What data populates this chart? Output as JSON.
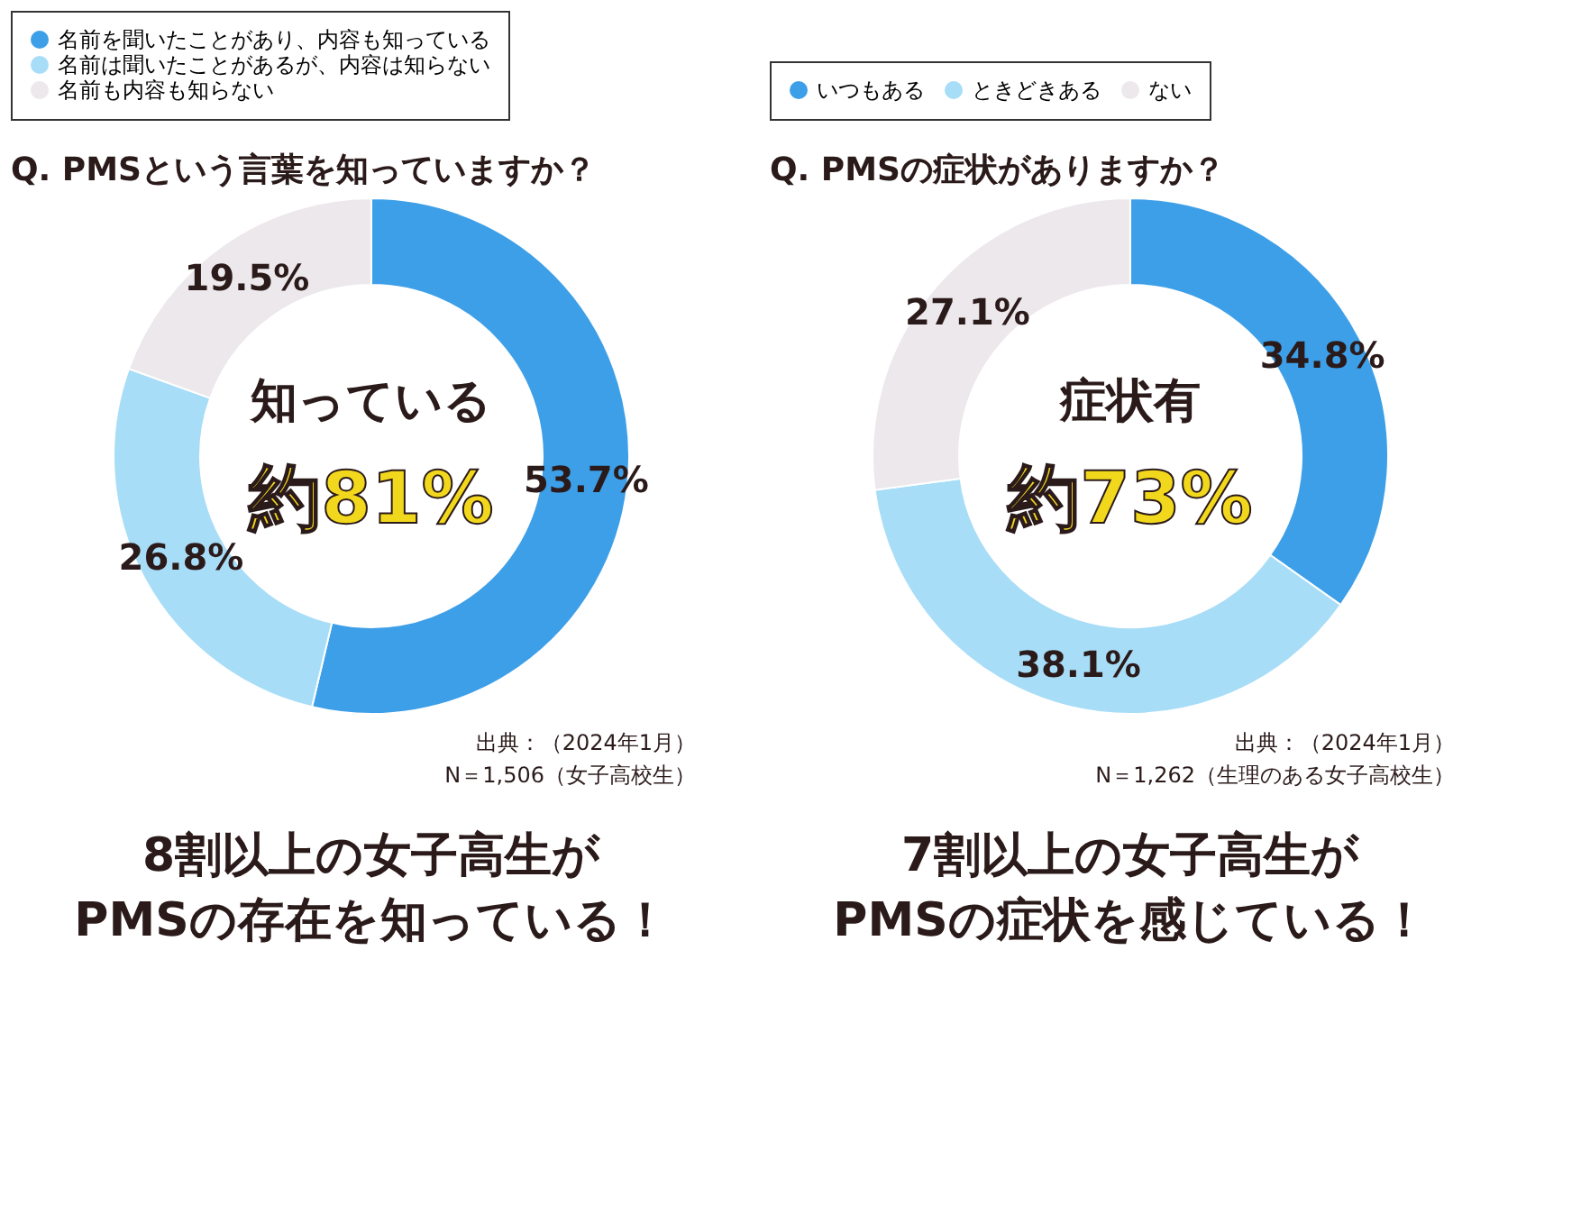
{
  "chart_data": [
    {
      "type": "donut",
      "title": "Q. PMSという言葉を知っていますか？",
      "categories": [
        "名前を聞いたことがあり、内容も知っている",
        "名前は聞いたことがあるが、内容は知らない",
        "名前も内容も知らない"
      ],
      "values": [
        53.7,
        26.8,
        19.5
      ],
      "colors": [
        "#3d9fe8",
        "#a8ddf8",
        "#ece8ec"
      ],
      "value_labels": [
        "53.7%",
        "26.8%",
        "19.5%"
      ],
      "legend": "top",
      "annotations": [
        "知っている",
        "約81%",
        "出典：（2024年1月）",
        "N＝1,506（女子高校生）",
        "8割以上の女子高生が",
        "PMSの存在を知っている！"
      ]
    },
    {
      "type": "donut",
      "title": "Q. PMSの症状がありますか？",
      "categories": [
        "いつもある",
        "ときどきある",
        "ない"
      ],
      "values": [
        34.8,
        38.1,
        27.1
      ],
      "colors": [
        "#3d9fe8",
        "#a8ddf8",
        "#ece8ec"
      ],
      "value_labels": [
        "34.8%",
        "38.1%",
        "27.1%"
      ],
      "legend": "top",
      "annotations": [
        "症状有",
        "約73%",
        "出典：（2024年1月）",
        "N＝1,262（生理のある女子高校生）",
        "7割以上の女子高生が",
        "PMSの症状を感じている！"
      ]
    }
  ]
}
